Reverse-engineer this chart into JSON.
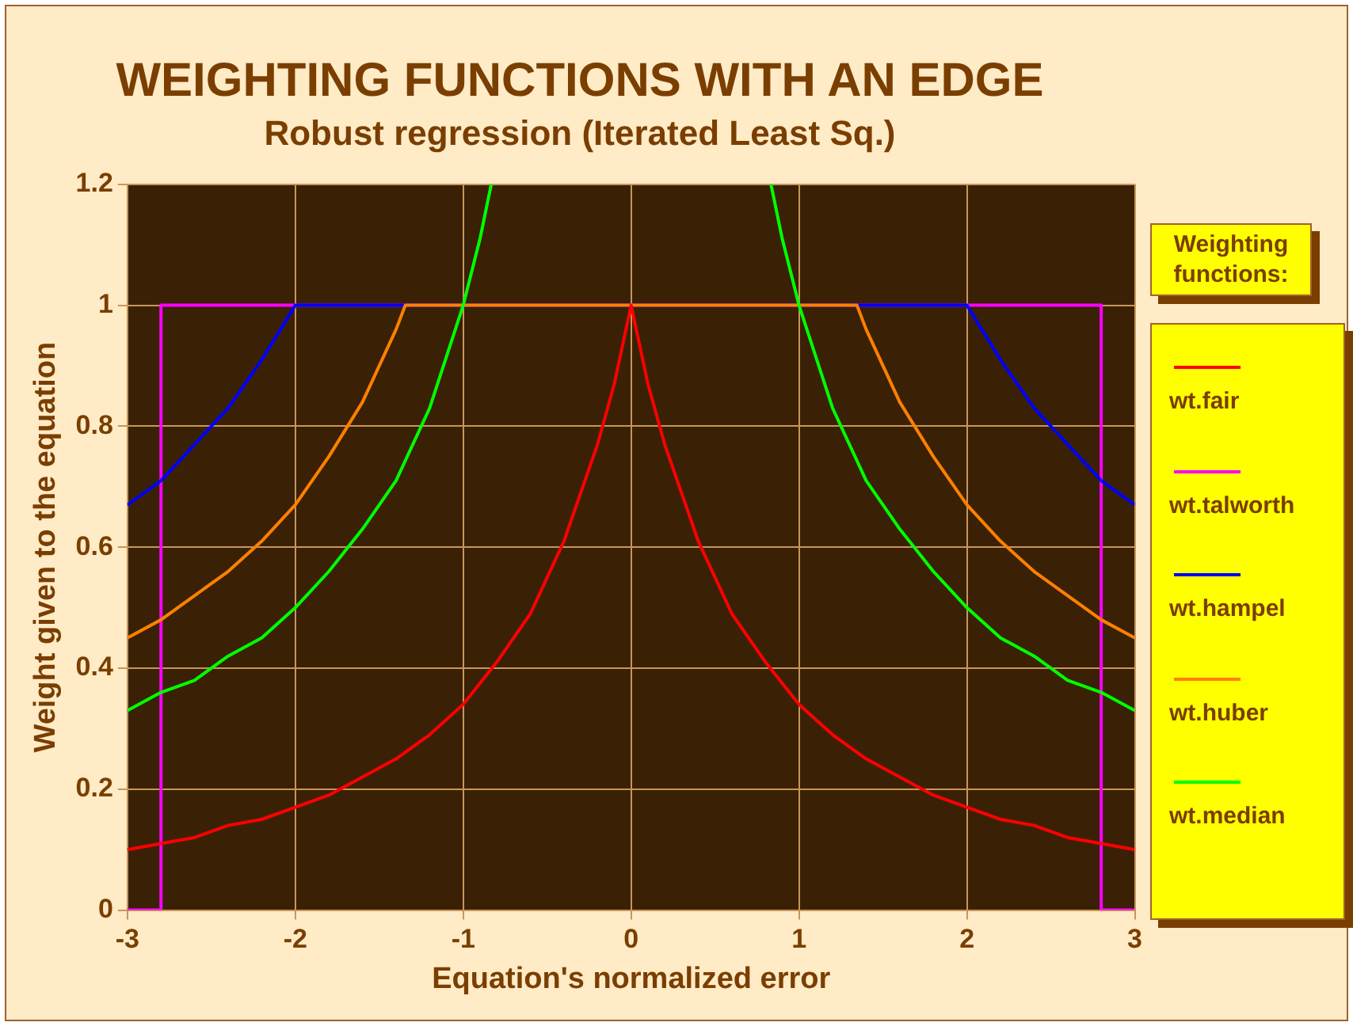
{
  "chart_data": {
    "type": "line",
    "title": "WEIGHTING FUNCTIONS WITH AN EDGE",
    "subtitle": "Robust regression (Iterated Least Sq.)",
    "xlabel": "Equation's normalized error",
    "ylabel": "Weight given to the equation",
    "legend_title": "Weighting functions:",
    "legend": "right",
    "grid": true,
    "marker": "none",
    "line_style": "solid",
    "xlim": [
      -3,
      3
    ],
    "xticks": [
      -3,
      -2,
      -1,
      0,
      1,
      2,
      3
    ],
    "ylim": [
      0,
      1.2
    ],
    "yticks": [
      0,
      0.2,
      0.4,
      0.6,
      0.8,
      1,
      1.2
    ],
    "series": [
      {
        "name": "wt.fair",
        "color": "#ff0000",
        "x": [
          -3,
          -2.8,
          -2.6,
          -2.4,
          -2.2,
          -2,
          -1.8,
          -1.6,
          -1.4,
          -1.2,
          -1,
          -0.8,
          -0.6,
          -0.4,
          -0.2,
          -0.1,
          0,
          0.1,
          0.2,
          0.4,
          0.6,
          0.8,
          1,
          1.2,
          1.4,
          1.6,
          1.8,
          2,
          2.2,
          2.4,
          2.6,
          2.8,
          3
        ],
        "values": [
          0.1,
          0.11,
          0.12,
          0.14,
          0.15,
          0.17,
          0.19,
          0.22,
          0.25,
          0.29,
          0.34,
          0.41,
          0.49,
          0.61,
          0.77,
          0.87,
          1,
          0.87,
          0.77,
          0.61,
          0.49,
          0.41,
          0.34,
          0.29,
          0.25,
          0.22,
          0.19,
          0.17,
          0.15,
          0.14,
          0.12,
          0.11,
          0.1
        ]
      },
      {
        "name": "wt.talworth",
        "color": "#ff00ff",
        "x": [
          -3,
          -2.8,
          -2.8,
          2.8,
          2.8,
          3
        ],
        "values": [
          0,
          0,
          1,
          1,
          0,
          0
        ]
      },
      {
        "name": "wt.hampel",
        "color": "#0000ff",
        "x": [
          -3,
          -2.8,
          -2.6,
          -2.4,
          -2.2,
          -2,
          2,
          2.2,
          2.4,
          2.6,
          2.8,
          3
        ],
        "values": [
          0.67,
          0.71,
          0.77,
          0.83,
          0.91,
          1,
          1,
          0.91,
          0.83,
          0.77,
          0.71,
          0.67
        ]
      },
      {
        "name": "wt.huber",
        "color": "#ff8000",
        "x": [
          -3,
          -2.8,
          -2.6,
          -2.4,
          -2.2,
          -2,
          -1.8,
          -1.6,
          -1.4,
          -1.345,
          1.345,
          1.4,
          1.6,
          1.8,
          2,
          2.2,
          2.4,
          2.6,
          2.8,
          3
        ],
        "values": [
          0.45,
          0.48,
          0.52,
          0.56,
          0.61,
          0.67,
          0.75,
          0.84,
          0.96,
          1,
          1,
          0.96,
          0.84,
          0.75,
          0.67,
          0.61,
          0.56,
          0.52,
          0.48,
          0.45
        ]
      },
      {
        "name": "wt.median",
        "color": "#00ff00",
        "x": [
          -3,
          -2.8,
          -2.6,
          -2.4,
          -2.2,
          -2,
          -1.8,
          -1.6,
          -1.4,
          -1.2,
          -1,
          -0.9,
          -0.833,
          0,
          0.833,
          0.9,
          1,
          1.2,
          1.4,
          1.6,
          1.8,
          2,
          2.2,
          2.4,
          2.6,
          2.8,
          3
        ],
        "values": [
          0.33,
          0.36,
          0.38,
          0.42,
          0.45,
          0.5,
          0.56,
          0.63,
          0.71,
          0.83,
          1,
          1.11,
          1.2,
          null,
          1.2,
          1.11,
          1,
          0.83,
          0.71,
          0.63,
          0.56,
          0.5,
          0.45,
          0.42,
          0.38,
          0.36,
          0.33
        ]
      }
    ]
  }
}
